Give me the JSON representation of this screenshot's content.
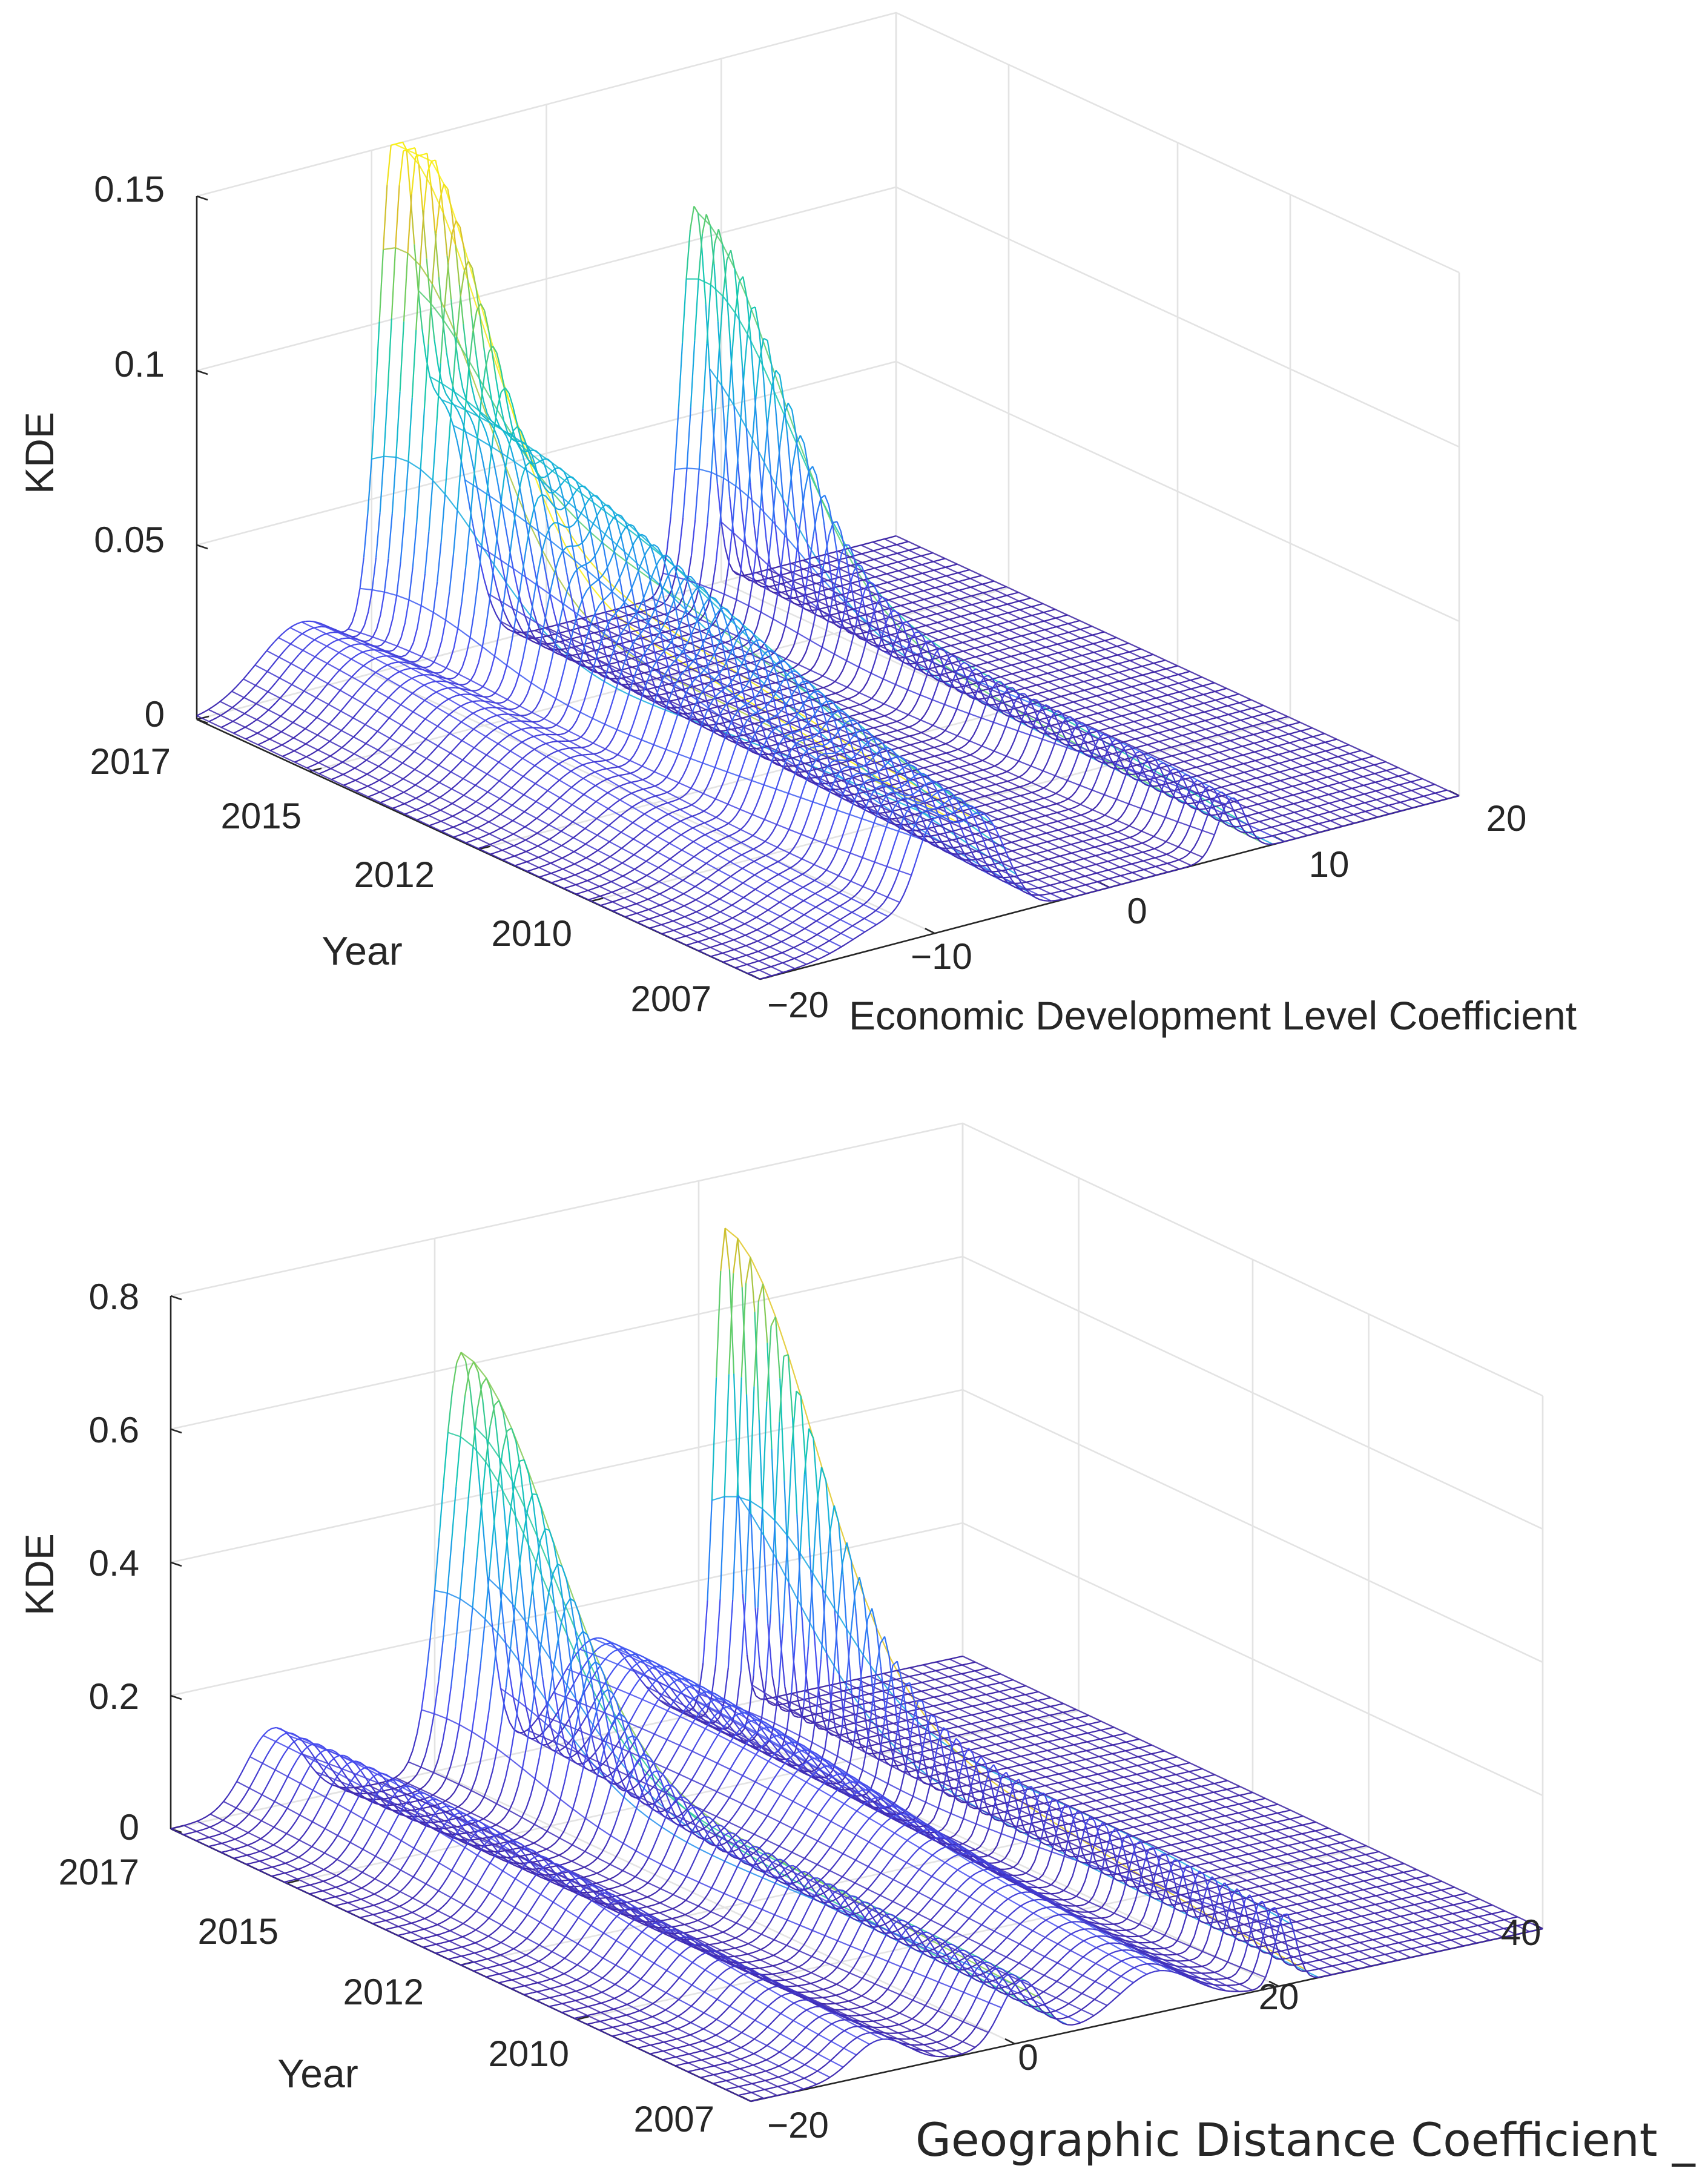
{
  "chart_data": [
    {
      "type": "surface",
      "title": "",
      "zlabel": "KDE",
      "ylabel": "Year",
      "xlabel": "Economic Development Level Coefficient",
      "zlim": [
        0,
        0.15
      ],
      "z_ticks": [
        0,
        0.05,
        0.1,
        0.15
      ],
      "z_tick_labels": [
        "0",
        "0.05",
        "0.1",
        "0.15"
      ],
      "x_ticks": [
        -20,
        -10,
        0,
        10,
        20
      ],
      "x_tick_labels": [
        "−20",
        "−10",
        "0",
        "10",
        "20"
      ],
      "year_tick_values": [
        2017,
        2015,
        2012,
        2010,
        2007
      ],
      "year_tick_labels": [
        "2017",
        "2015",
        "2012",
        "2010",
        "2007"
      ],
      "xlim": [
        -20,
        20
      ],
      "year_range": [
        2007,
        2017
      ],
      "peaks": [
        {
          "x": -14.0,
          "year": 2017,
          "kde": 0.02,
          "width": 3.5
        },
        {
          "x": -8.6,
          "year": 2017,
          "kde": 0.15,
          "width": 1.4
        },
        {
          "x": -6.0,
          "year": 2016,
          "kde": 0.07,
          "width": 2.0
        },
        {
          "x": 8.5,
          "year": 2017,
          "kde": 0.11,
          "width": 1.1
        }
      ],
      "colormap": "parula"
    },
    {
      "type": "surface",
      "title": "",
      "zlabel": "KDE",
      "ylabel": "Year",
      "xlabel": "Geographic Distance Coefficient _",
      "zlim": [
        0,
        0.8
      ],
      "z_ticks": [
        0,
        0.2,
        0.4,
        0.6,
        0.8
      ],
      "z_tick_labels": [
        "0",
        "0.2",
        "0.4",
        "0.6",
        "0.8"
      ],
      "x_ticks": [
        -20,
        0,
        20,
        40
      ],
      "x_tick_labels": [
        "−20",
        "0",
        "20",
        "40"
      ],
      "year_tick_values": [
        2017,
        2015,
        2012,
        2010,
        2007
      ],
      "year_tick_labels": [
        "2017",
        "2015",
        "2012",
        "2010",
        "2007"
      ],
      "xlim": [
        -20,
        40
      ],
      "year_range": [
        2007,
        2017
      ],
      "peaks": [
        {
          "x": -12.0,
          "year": 2016,
          "kde": 0.12,
          "width": 3.0
        },
        {
          "x": 2.0,
          "year": 2017,
          "kde": 0.62,
          "width": 2.2
        },
        {
          "x": 12.0,
          "year": 2016,
          "kde": 0.15,
          "width": 4.0
        },
        {
          "x": 22.0,
          "year": 2017,
          "kde": 0.72,
          "width": 1.1
        }
      ],
      "colormap": "parula"
    }
  ]
}
